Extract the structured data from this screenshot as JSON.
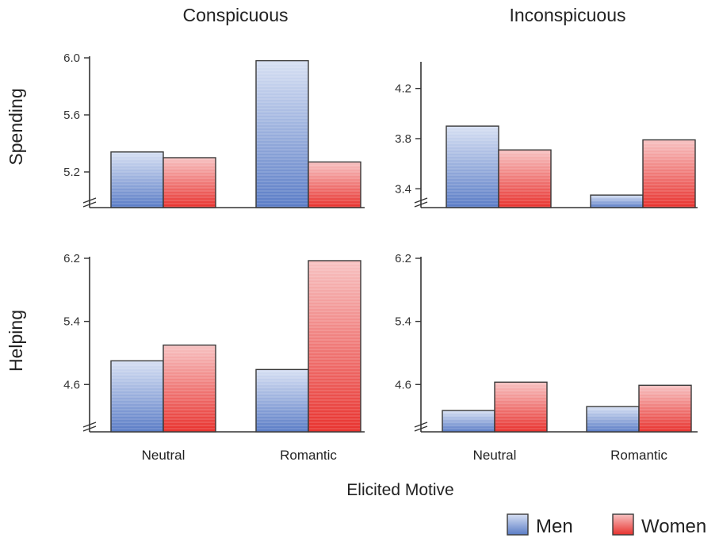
{
  "figure": {
    "column_titles": [
      "Conspicuous",
      "Inconspicuous"
    ],
    "row_titles": [
      "Spending",
      "Helping"
    ],
    "xlabel": "Elicited Motive"
  },
  "colors": {
    "men_light": "#cfdaf0",
    "men_dark": "#5577c4",
    "women_light": "#f5b8b8",
    "women_dark": "#e8322e"
  },
  "chart_data": [
    {
      "type": "bar",
      "panel": "Spending / Conspicuous",
      "categories": [
        "Neutral",
        "Romantic"
      ],
      "series": [
        {
          "name": "Men",
          "values": [
            5.34,
            5.98
          ]
        },
        {
          "name": "Women",
          "values": [
            5.3,
            5.27
          ]
        }
      ],
      "ylim": [
        4.95,
        6.0
      ],
      "yticks": [
        5.2,
        5.6,
        6.0
      ],
      "ytick_labels": [
        "5.2",
        "5.6",
        "6.0"
      ],
      "axis_break": true
    },
    {
      "type": "bar",
      "panel": "Spending / Inconspicuous",
      "categories": [
        "Neutral",
        "Romantic"
      ],
      "series": [
        {
          "name": "Men",
          "values": [
            3.9,
            3.35
          ]
        },
        {
          "name": "Women",
          "values": [
            3.71,
            3.79
          ]
        }
      ],
      "ylim": [
        3.25,
        4.4
      ],
      "yticks": [
        3.4,
        3.8,
        4.2
      ],
      "ytick_labels": [
        "3.4",
        "3.8",
        "4.2"
      ],
      "axis_break": true
    },
    {
      "type": "bar",
      "panel": "Helping / Conspicuous",
      "categories": [
        "Neutral",
        "Romantic"
      ],
      "series": [
        {
          "name": "Men",
          "values": [
            4.9,
            4.79
          ]
        },
        {
          "name": "Women",
          "values": [
            5.1,
            6.17
          ]
        }
      ],
      "ylim": [
        4.0,
        6.2
      ],
      "yticks": [
        4.6,
        5.4,
        6.2
      ],
      "ytick_labels": [
        "4.6",
        "5.4",
        "6.2"
      ],
      "axis_break": true
    },
    {
      "type": "bar",
      "panel": "Helping / Inconspicuous",
      "categories": [
        "Neutral",
        "Romantic"
      ],
      "series": [
        {
          "name": "Men",
          "values": [
            4.27,
            4.32
          ]
        },
        {
          "name": "Women",
          "values": [
            4.63,
            4.59
          ]
        }
      ],
      "ylim": [
        4.0,
        6.2
      ],
      "yticks": [
        4.6,
        5.4,
        6.2
      ],
      "ytick_labels": [
        "4.6",
        "5.4",
        "6.2"
      ],
      "axis_break": true
    }
  ],
  "legend": {
    "position": "bottom-right",
    "items": [
      {
        "label": "Men",
        "color": "#5577c4"
      },
      {
        "label": "Women",
        "color": "#e8322e"
      }
    ]
  }
}
